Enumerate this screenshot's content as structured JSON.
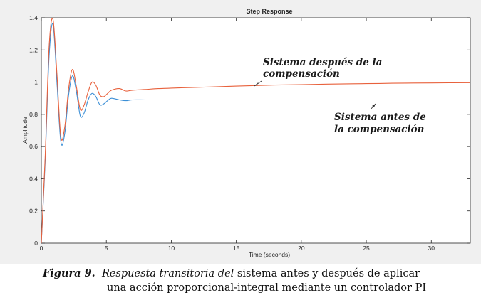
{
  "chart_data": {
    "type": "line",
    "title": "Step Response",
    "xlabel": "Time (seconds)",
    "ylabel": "Amplitude",
    "xlim": [
      0,
      33
    ],
    "ylim": [
      0,
      1.4
    ],
    "xticks": [
      0,
      5,
      10,
      15,
      20,
      25,
      30
    ],
    "yticks": [
      0,
      0.2,
      0.4,
      0.6,
      0.8,
      1,
      1.2,
      1.4
    ],
    "ytick_labels": [
      "0",
      "0.2",
      "0.4",
      "0.6",
      "0.8",
      "1",
      "1.2",
      "1.4"
    ],
    "grid": false,
    "reference_lines": [
      {
        "y": 1.0,
        "style": "dotted"
      },
      {
        "y": 0.89,
        "style": "dotted"
      }
    ],
    "series": [
      {
        "color": "#e8613c",
        "x": [
          0,
          0.3,
          0.6,
          0.9,
          1.2,
          1.5,
          1.8,
          2.1,
          2.4,
          2.7,
          3.0,
          3.3,
          3.6,
          3.9,
          4.2,
          4.5,
          4.8,
          5.1,
          5.4,
          6.0,
          6.5,
          7.0,
          8.0,
          9.0,
          10,
          12,
          14,
          16,
          18,
          20,
          22,
          24,
          26,
          28,
          30,
          33
        ],
        "y": [
          0,
          0.55,
          1.22,
          1.39,
          1.05,
          0.66,
          0.72,
          0.96,
          1.08,
          0.97,
          0.83,
          0.86,
          0.94,
          1.0,
          0.98,
          0.92,
          0.91,
          0.93,
          0.95,
          0.96,
          0.945,
          0.95,
          0.955,
          0.96,
          0.963,
          0.968,
          0.973,
          0.978,
          0.982,
          0.985,
          0.988,
          0.99,
          0.992,
          0.994,
          0.995,
          0.997
        ]
      },
      {
        "color": "#3c8fd6",
        "x": [
          0,
          0.3,
          0.6,
          0.9,
          1.2,
          1.5,
          1.8,
          2.1,
          2.4,
          2.7,
          3.0,
          3.3,
          3.6,
          3.9,
          4.2,
          4.5,
          4.8,
          5.1,
          5.4,
          6.0,
          6.5,
          7.0,
          8.0,
          9.0,
          10,
          33
        ],
        "y": [
          0,
          0.52,
          1.16,
          1.36,
          1.0,
          0.63,
          0.68,
          0.92,
          1.04,
          0.94,
          0.79,
          0.81,
          0.89,
          0.93,
          0.91,
          0.86,
          0.865,
          0.885,
          0.9,
          0.89,
          0.885,
          0.89,
          0.89,
          0.89,
          0.89,
          0.89
        ]
      }
    ],
    "annotations": [
      {
        "line1": "Sistema después de la",
        "line2": "compensación"
      },
      {
        "line1": "Sistema antes de",
        "line2": "la compensación"
      }
    ]
  },
  "caption": {
    "label": "Figura 9.",
    "italic_part": "Respuesta transitoria del",
    "rest_line1": " sistema antes y después de aplicar",
    "line2": "una acción proporcional-integral mediante un controlador PI"
  }
}
